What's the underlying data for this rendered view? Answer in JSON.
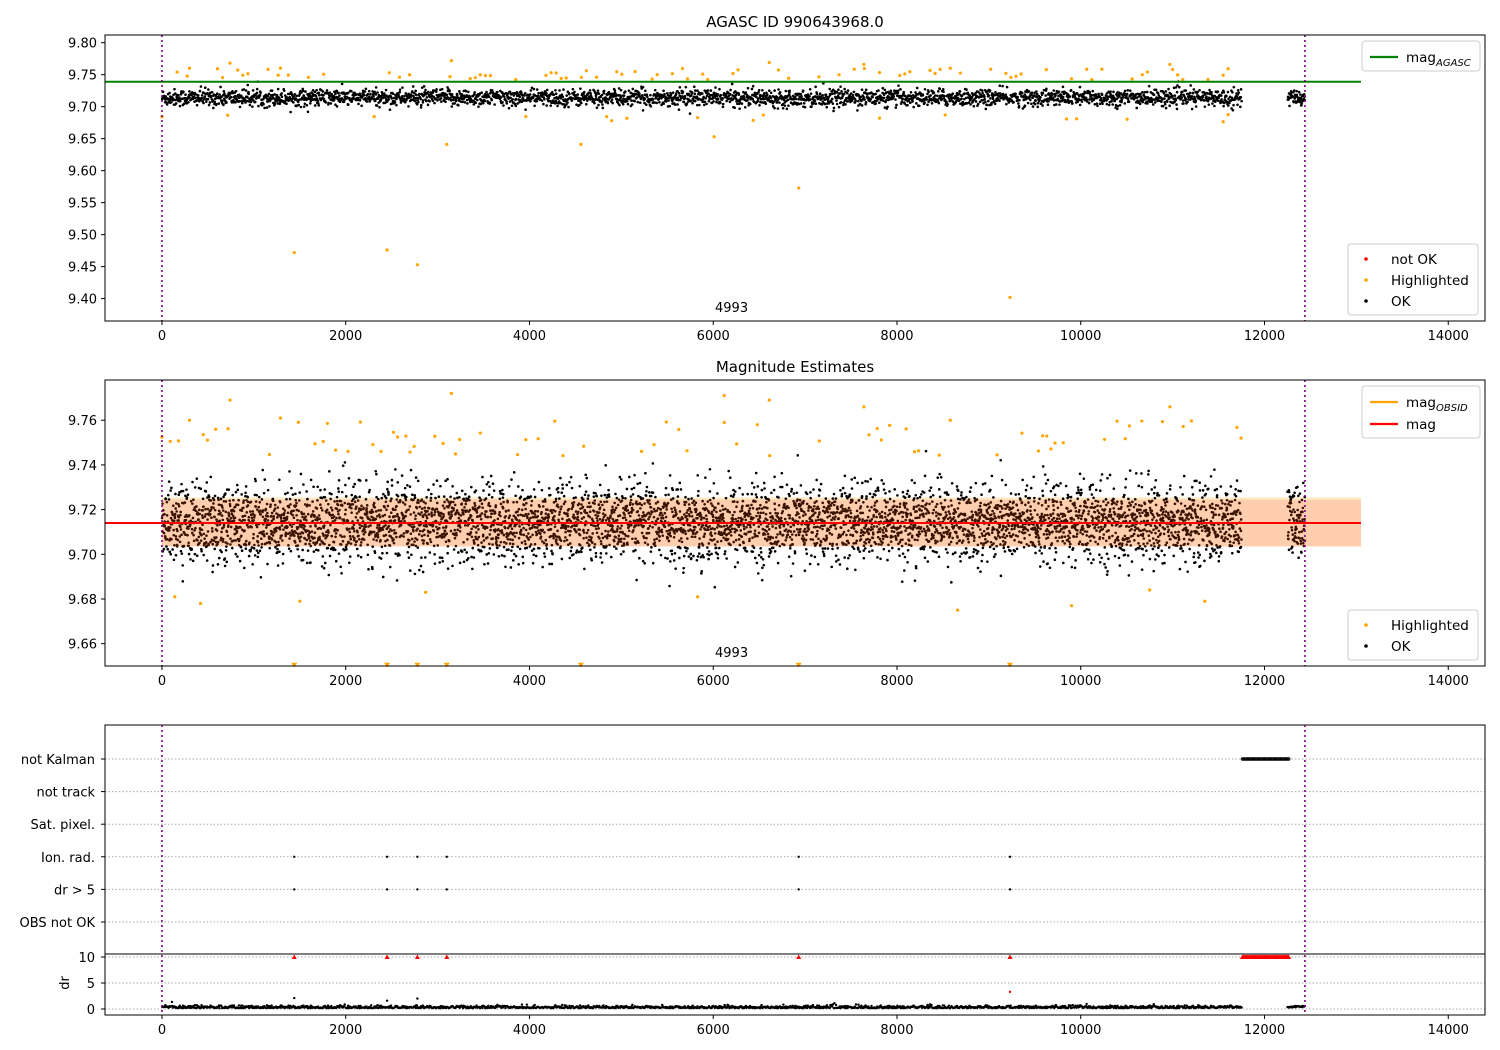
{
  "chart_data": [
    {
      "type": "scatter",
      "title": "AGASC ID 990643968.0",
      "xlim": [
        -620,
        14400
      ],
      "ylim": [
        9.365,
        9.812
      ],
      "xticks": [
        0,
        2000,
        4000,
        6000,
        8000,
        10000,
        12000,
        14000
      ],
      "yticks": [
        9.4,
        9.45,
        9.5,
        9.55,
        9.6,
        9.65,
        9.7,
        9.75,
        9.8
      ],
      "vlines": [
        0,
        12440
      ],
      "annotation": {
        "text": "4993",
        "x": 6000,
        "y": 9.38
      },
      "legend_lines": [
        {
          "label": "mag",
          "sub": "AGASC",
          "color": "#008000"
        }
      ],
      "legend_markers": [
        {
          "label": "not OK",
          "color": "#ff0000"
        },
        {
          "label": "Highlighted",
          "color": "#ffa500"
        },
        {
          "label": "OK",
          "color": "#000000"
        }
      ],
      "hlines": [
        {
          "name": "mag_AGASC",
          "y": 9.739,
          "x": [
            0,
            13050
          ],
          "color": "#008000"
        }
      ],
      "series": [
        {
          "name": "OK",
          "color": "#000000",
          "x_range": [
            0,
            11750
          ],
          "x_range2": [
            12250,
            12440
          ],
          "center": 9.714,
          "spread": 0.012
        },
        {
          "name": "Highlighted",
          "color": "#ffa500",
          "points": [
            [
              1440,
              9.472
            ],
            [
              2450,
              9.476
            ],
            [
              2780,
              9.453
            ],
            [
              3100,
              9.641
            ],
            [
              4560,
              9.641
            ],
            [
              6010,
              9.653
            ],
            [
              6930,
              9.573
            ],
            [
              9230,
              9.402
            ],
            [
              740,
              9.768
            ],
            [
              3150,
              9.772
            ],
            [
              6610,
              9.769
            ],
            [
              10970,
              9.766
            ],
            [
              5150,
              9.755
            ],
            [
              7640,
              9.766
            ],
            [
              300,
              9.76
            ],
            [
              1290,
              9.76
            ],
            [
              8580,
              9.76
            ]
          ]
        }
      ]
    },
    {
      "type": "scatter",
      "title": "Magnitude Estimates",
      "xlim": [
        -620,
        14400
      ],
      "ylim": [
        9.65,
        9.778
      ],
      "xticks": [
        0,
        2000,
        4000,
        6000,
        8000,
        10000,
        12000,
        14000
      ],
      "yticks": [
        9.66,
        9.68,
        9.7,
        9.72,
        9.74,
        9.76
      ],
      "vlines": [
        0,
        12440
      ],
      "annotation": {
        "text": "4993",
        "x": 6000,
        "y": 9.653
      },
      "legend_lines": [
        {
          "label": "mag",
          "sub": "OBSID",
          "color": "#ffa500"
        },
        {
          "label": "mag",
          "sub": "",
          "color": "#ff0000"
        }
      ],
      "legend_markers": [
        {
          "label": "Highlighted",
          "color": "#ffa500"
        },
        {
          "label": "OK",
          "color": "#000000"
        }
      ],
      "hlines": [
        {
          "name": "mag",
          "y": 9.714,
          "x": [
            0,
            13050
          ],
          "color": "#ff0000"
        }
      ],
      "band": {
        "y": [
          9.7035,
          9.7245
        ],
        "x": [
          0,
          13050
        ],
        "color": "#ff0000"
      },
      "obsid_band": {
        "y": [
          9.7035,
          9.7255
        ],
        "x": [
          0,
          13050
        ],
        "color": "#ffa500"
      },
      "off_scale_markers": {
        "y": 9.651,
        "x": [
          1440,
          2450,
          2780,
          3100,
          4560,
          6930,
          9230
        ],
        "color": "#ffa500"
      },
      "series": [
        {
          "name": "OK",
          "color": "#000000",
          "x_range": [
            0,
            11750
          ],
          "x_range2": [
            12250,
            12440
          ],
          "center": 9.714,
          "spread": 0.012
        },
        {
          "name": "Highlighted",
          "color": "#ffa500",
          "points": [
            [
              740,
              9.769
            ],
            [
              3150,
              9.772
            ],
            [
              6610,
              9.769
            ],
            [
              6120,
              9.771
            ],
            [
              10970,
              9.766
            ],
            [
              7640,
              9.766
            ],
            [
              1290,
              9.761
            ],
            [
              300,
              9.76
            ],
            [
              8580,
              9.76
            ],
            [
              140,
              9.681
            ],
            [
              420,
              9.678
            ],
            [
              1500,
              9.679
            ],
            [
              2870,
              9.683
            ],
            [
              5830,
              9.681
            ],
            [
              8660,
              9.675
            ],
            [
              9900,
              9.677
            ],
            [
              10750,
              9.684
            ],
            [
              11350,
              9.679
            ]
          ]
        }
      ]
    },
    {
      "type": "scatter",
      "title": "",
      "xlim": [
        -620,
        14400
      ],
      "xticks": [
        0,
        2000,
        4000,
        6000,
        8000,
        10000,
        12000,
        14000
      ],
      "flag_labels": [
        "not Kalman",
        "not track",
        "Sat. pixel.",
        "Ion. rad.",
        "dr > 5",
        "OBS not OK"
      ],
      "flag_points": {
        "not Kalman": {
          "x_range": [
            11760,
            12270
          ]
        },
        "Ion. rad.": {
          "x": [
            1440,
            2450,
            2780,
            3100,
            6930,
            9230
          ]
        },
        "dr > 5": {
          "x": [
            1440,
            2450,
            2780,
            3100,
            6930,
            9230
          ]
        }
      },
      "dr_ylabel": "dr",
      "dr_yticks": [
        0,
        5,
        10
      ],
      "dr_clip_markers": {
        "x": [
          1440,
          2450,
          2780,
          3100,
          6930,
          9230
        ],
        "x_range": [
          11760,
          12270
        ],
        "y": 10,
        "color": "#ff0000"
      },
      "dr_points": [
        [
          1440,
          2.1
        ],
        [
          2450,
          1.6
        ],
        [
          2780,
          2.0
        ],
        [
          9230,
          3.3
        ]
      ],
      "vlines": [
        0,
        12440
      ]
    }
  ]
}
